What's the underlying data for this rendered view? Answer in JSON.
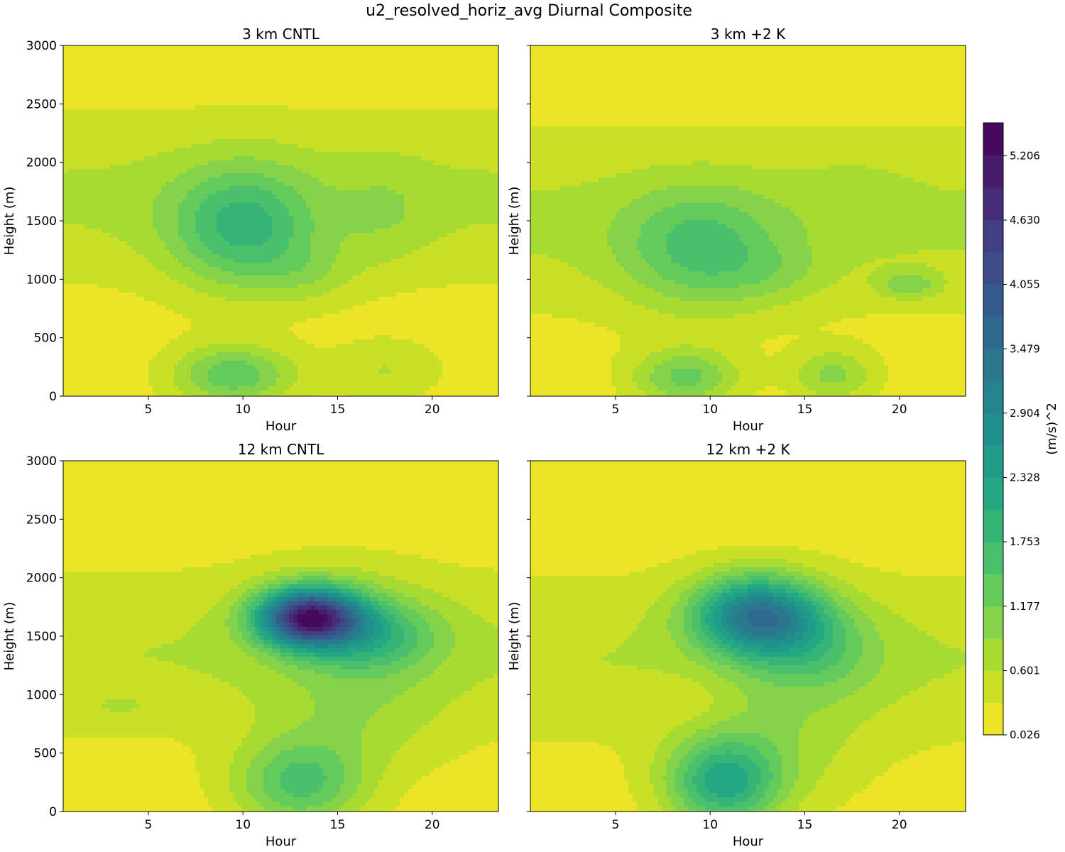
{
  "suptitle": "u2_resolved_horiz_avg Diurnal Composite",
  "chart_data": {
    "type": "heatmap",
    "variant": "filled-contour",
    "colormap": "viridis_r",
    "x": {
      "label": "Hour",
      "range": [
        0.5,
        23.5
      ],
      "ticks": [
        5,
        10,
        15,
        20
      ]
    },
    "y": {
      "label": "Height (m)",
      "range": [
        0,
        3000
      ],
      "ticks": [
        0,
        500,
        1000,
        1500,
        2000,
        2500,
        3000
      ]
    },
    "colorbar": {
      "label": "(m/s)^2",
      "range": [
        0.026,
        5.5
      ],
      "ticks": [
        0.026,
        0.601,
        1.177,
        1.753,
        2.328,
        2.904,
        3.479,
        4.055,
        4.63,
        5.206
      ],
      "tick_labels": [
        "0.026",
        "0.601",
        "1.177",
        "1.753",
        "2.328",
        "2.904",
        "3.479",
        "4.055",
        "4.630",
        "5.206"
      ],
      "levels": 19
    },
    "panels": [
      {
        "title": "3 km CNTL",
        "base": {
          "min": 0.15,
          "max": 0.5,
          "peakZ": 1700,
          "width": 700,
          "bottomEdge": 0.28,
          "topZ": 2950
        },
        "features": [
          {
            "x": 10,
            "z": 1430,
            "sx": 3.8,
            "sz": 520,
            "amp": 1.35
          },
          {
            "x": 13.5,
            "z": 1050,
            "sx": 2.6,
            "sz": 260,
            "amp": 0.35
          },
          {
            "x": 9.5,
            "z": 180,
            "sx": 3.2,
            "sz": 260,
            "amp": 1.25
          },
          {
            "x": 17.5,
            "z": 220,
            "sx": 3.0,
            "sz": 260,
            "amp": 0.45
          },
          {
            "x": 17.5,
            "z": 1550,
            "sx": 2.5,
            "sz": 450,
            "amp": 0.3
          }
        ]
      },
      {
        "title": "3 km +2 K",
        "base": {
          "min": 0.15,
          "max": 0.5,
          "peakZ": 1500,
          "width": 750,
          "bottomEdge": 0.28,
          "topZ": 2980
        },
        "features": [
          {
            "x": 9.5,
            "z": 1250,
            "sx": 4.2,
            "sz": 520,
            "amp": 1.05
          },
          {
            "x": 13.5,
            "z": 1050,
            "sx": 3.0,
            "sz": 250,
            "amp": 0.3
          },
          {
            "x": 20.5,
            "z": 950,
            "sx": 1.6,
            "sz": 120,
            "amp": 0.7
          },
          {
            "x": 8.7,
            "z": 160,
            "sx": 2.8,
            "sz": 240,
            "amp": 1.1
          },
          {
            "x": 16.5,
            "z": 180,
            "sx": 2.2,
            "sz": 220,
            "amp": 0.8
          },
          {
            "x": 17.5,
            "z": 1700,
            "sx": 3.0,
            "sz": 350,
            "amp": 0.2
          }
        ]
      },
      {
        "title": "12 km CNTL",
        "base": {
          "min": 0.15,
          "max": 0.45,
          "peakZ": 1350,
          "width": 700,
          "bottomEdge": 0.28,
          "topZ": 2950
        },
        "features": [
          {
            "x": 13.5,
            "z": 1660,
            "sx": 2.6,
            "sz": 240,
            "amp": 4.3
          },
          {
            "x": 17.0,
            "z": 1500,
            "sx": 3.4,
            "sz": 300,
            "amp": 1.0
          },
          {
            "x": 15.0,
            "z": 1650,
            "sx": 4.5,
            "sz": 450,
            "amp": 0.5
          },
          {
            "x": 13.0,
            "z": 240,
            "sx": 3.4,
            "sz": 380,
            "amp": 1.35
          },
          {
            "x": 16.0,
            "z": 800,
            "sx": 4.5,
            "sz": 500,
            "amp": 0.45
          },
          {
            "x": 3.5,
            "z": 900,
            "sx": 1.5,
            "sz": 70,
            "amp": 0.25
          }
        ]
      },
      {
        "title": "12 km +2 K",
        "base": {
          "min": 0.15,
          "max": 0.45,
          "peakZ": 1300,
          "width": 700,
          "bottomEdge": 0.28,
          "topZ": 2980
        },
        "features": [
          {
            "x": 12.5,
            "z": 1680,
            "sx": 3.3,
            "sz": 330,
            "amp": 2.9
          },
          {
            "x": 15.5,
            "z": 1400,
            "sx": 3.5,
            "sz": 380,
            "amp": 0.8
          },
          {
            "x": 10.7,
            "z": 250,
            "sx": 3.0,
            "sz": 380,
            "amp": 1.9
          },
          {
            "x": 14.0,
            "z": 600,
            "sx": 4.5,
            "sz": 600,
            "amp": 0.45
          },
          {
            "x": 8.5,
            "z": 950,
            "sx": 2.3,
            "sz": 200,
            "amp": -0.25
          }
        ]
      }
    ]
  }
}
